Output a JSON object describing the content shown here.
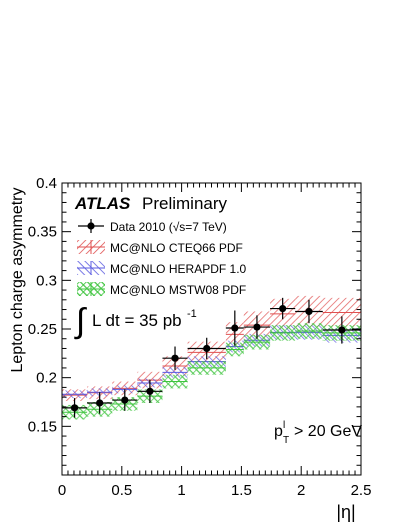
{
  "chart_data": {
    "type": "scatter",
    "xlabel": "|η|",
    "ylabel": "Lepton charge asymmetry",
    "xlim": [
      0,
      2.5
    ],
    "ylim": [
      0.1,
      0.4
    ],
    "x_ticks": [
      "0",
      "0.5",
      "1",
      "1.5",
      "2",
      "2.5"
    ],
    "y_ticks": [
      "0.15",
      "0.2",
      "0.25",
      "0.3",
      "0.35",
      "0.4"
    ],
    "grid": false,
    "legend_position": "top-left",
    "atlas_label": "ATLAS",
    "preliminary_label": "Preliminary",
    "lumi_prefix": "L dt = 35 pb",
    "lumi_exponent": "-1",
    "cut_p": "p",
    "cut_sup": "l",
    "cut_sub": "T",
    "cut_rest": "> 20 GeV",
    "bins": [
      0.0,
      0.21,
      0.42,
      0.63,
      0.84,
      1.05,
      1.37,
      1.52,
      1.74,
      1.95,
      2.18,
      2.5
    ],
    "data": {
      "name": "Data 2010 (√s=7 TeV)",
      "color": "#000000",
      "x": [
        0.105,
        0.315,
        0.525,
        0.735,
        0.945,
        1.21,
        1.445,
        1.63,
        1.845,
        2.065,
        2.34
      ],
      "y": [
        0.169,
        0.174,
        0.177,
        0.186,
        0.22,
        0.23,
        0.251,
        0.252,
        0.271,
        0.268,
        0.249
      ],
      "err": [
        0.01,
        0.011,
        0.011,
        0.012,
        0.012,
        0.011,
        0.018,
        0.012,
        0.011,
        0.012,
        0.014
      ]
    },
    "series": [
      {
        "name": "MC@NLO CTEQ66 PDF",
        "color": "#e05050",
        "lo": [
          0.176,
          0.178,
          0.182,
          0.189,
          0.202,
          0.215,
          0.232,
          0.24,
          0.25,
          0.252,
          0.252
        ],
        "hi": [
          0.188,
          0.191,
          0.196,
          0.206,
          0.222,
          0.237,
          0.257,
          0.268,
          0.281,
          0.284,
          0.282
        ]
      },
      {
        "name": "MC@NLO HERAPDF 1.0",
        "color": "#5a5ae0",
        "lo": [
          0.179,
          0.181,
          0.184,
          0.19,
          0.2,
          0.211,
          0.226,
          0.232,
          0.239,
          0.239,
          0.236
        ],
        "hi": [
          0.187,
          0.189,
          0.192,
          0.199,
          0.211,
          0.222,
          0.238,
          0.245,
          0.254,
          0.254,
          0.251
        ]
      },
      {
        "name": "MC@NLO MSTW08 PDF",
        "color": "#3ec43e",
        "lo": [
          0.157,
          0.16,
          0.166,
          0.174,
          0.189,
          0.203,
          0.222,
          0.229,
          0.238,
          0.24,
          0.238
        ],
        "hi": [
          0.172,
          0.175,
          0.18,
          0.188,
          0.203,
          0.217,
          0.236,
          0.244,
          0.254,
          0.256,
          0.254
        ]
      }
    ]
  }
}
